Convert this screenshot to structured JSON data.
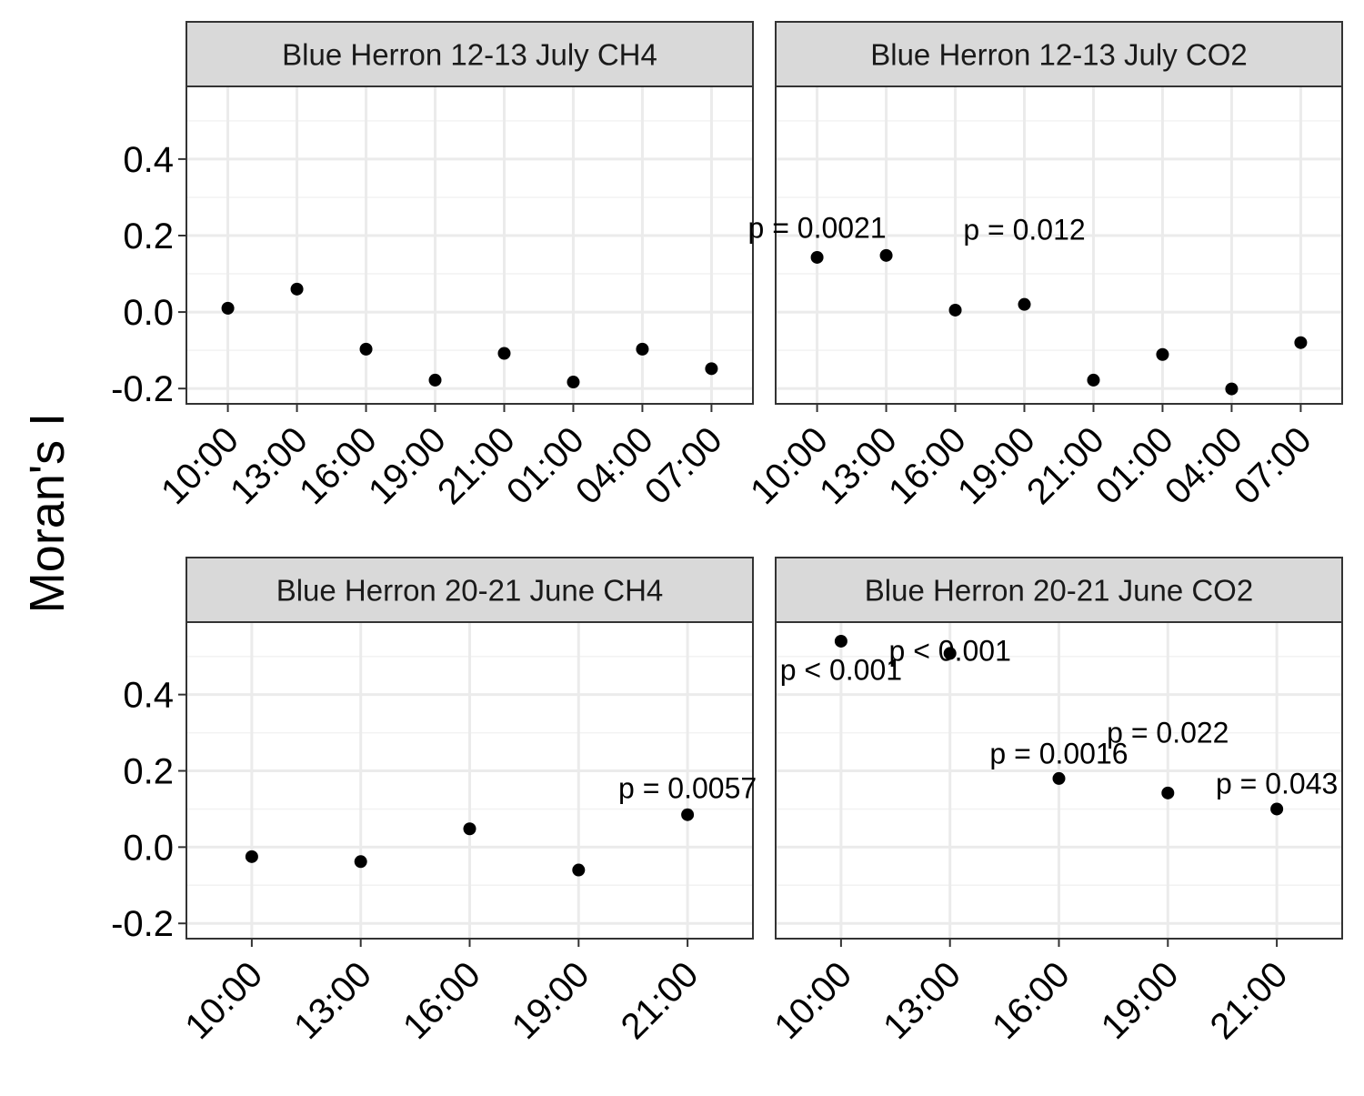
{
  "chart_data": {
    "type": "scatter",
    "ylabel": "Moran's I",
    "ylim": [
      -0.24,
      0.59
    ],
    "y_ticks": [
      -0.2,
      0.0,
      0.2,
      0.4
    ],
    "y_tick_labels": [
      "-0.2",
      "0.0",
      "0.2",
      "0.4"
    ],
    "grid": true,
    "facet_layout": "2x2",
    "panels": [
      {
        "title": "Blue Herron 12-13 July CH4",
        "categories": [
          "10:00",
          "13:00",
          "16:00",
          "19:00",
          "21:00",
          "01:00",
          "04:00",
          "07:00"
        ],
        "values": [
          0.01,
          0.06,
          -0.097,
          -0.178,
          -0.108,
          -0.183,
          -0.097,
          -0.148
        ],
        "annotations": []
      },
      {
        "title": "Blue Herron 12-13 July CO2",
        "categories": [
          "10:00",
          "13:00",
          "16:00",
          "19:00",
          "21:00",
          "01:00",
          "04:00",
          "07:00"
        ],
        "values": [
          0.143,
          0.148,
          0.005,
          0.02,
          -0.178,
          -0.111,
          -0.201,
          -0.08
        ],
        "annotations": [
          {
            "text": "p = 0.0021",
            "category": "10:00",
            "y": 0.22
          },
          {
            "text": "p = 0.012",
            "category": "19:00",
            "y": 0.215
          }
        ]
      },
      {
        "title": "Blue Herron 20-21 June CH4",
        "categories": [
          "10:00",
          "13:00",
          "16:00",
          "19:00",
          "21:00"
        ],
        "values": [
          -0.025,
          -0.038,
          0.048,
          -0.06,
          0.085
        ],
        "annotations": [
          {
            "text": "p = 0.0057",
            "category": "21:00",
            "y": 0.155
          }
        ]
      },
      {
        "title": "Blue Herron 20-21 June CO2",
        "categories": [
          "10:00",
          "13:00",
          "16:00",
          "19:00",
          "21:00"
        ],
        "values": [
          0.54,
          0.508,
          0.18,
          0.142,
          0.1
        ],
        "annotations": [
          {
            "text": "p < 0.001",
            "category": "10:00",
            "y": 0.465
          },
          {
            "text": "p < 0.001",
            "category": "13:00",
            "y": 0.515
          },
          {
            "text": "p = 0.0016",
            "category": "16:00",
            "y": 0.245
          },
          {
            "text": "p = 0.022",
            "category": "19:00",
            "y": 0.3
          },
          {
            "text": "p = 0.043",
            "category": "21:00",
            "y": 0.167
          }
        ]
      }
    ]
  }
}
